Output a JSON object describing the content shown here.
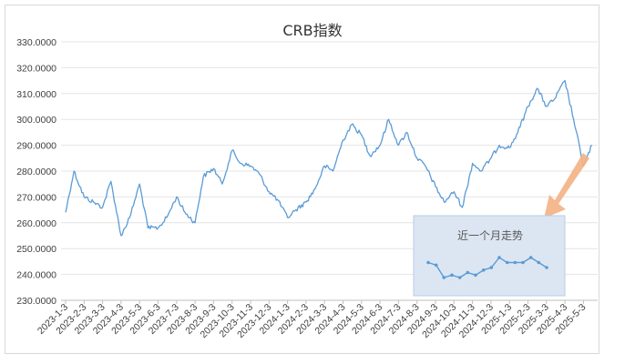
{
  "chart_data": [
    {
      "type": "line",
      "title": "CRB指数",
      "xlabel": "",
      "ylabel": "",
      "ylim": [
        230,
        330
      ],
      "y_ticks": [
        "230.0000",
        "240.0000",
        "250.0000",
        "260.0000",
        "270.0000",
        "280.0000",
        "290.0000",
        "300.0000",
        "310.0000",
        "320.0000",
        "330.0000"
      ],
      "grid": true,
      "legend": "none",
      "x_tick_labels": [
        "2023-1-3",
        "2023-2-3",
        "2023-3-3",
        "2023-4-3",
        "2023-5-3",
        "2023-6-3",
        "2023-7-3",
        "2023-8-3",
        "2023-9-3",
        "2023-10-3",
        "2023-11-3",
        "2023-12-3",
        "2024-1-3",
        "2024-2-3",
        "2024-3-3",
        "2024-4-3",
        "2024-5-3",
        "2024-6-3",
        "2024-7-3",
        "2024-8-3",
        "2024-9-3",
        "2024-10-3",
        "2024-11-3",
        "2024-12-3",
        "2025-1-3",
        "2025-2-3",
        "2025-3-3",
        "2025-4-3",
        "2025-5-3"
      ],
      "line_color": "#5b9bd5",
      "series": [
        {
          "x": [
            "2023-1-3",
            "2023-1-17",
            "2023-2-3",
            "2023-2-17",
            "2023-3-3",
            "2023-3-17",
            "2023-4-3",
            "2023-4-17",
            "2023-5-3",
            "2023-5-17",
            "2023-6-3",
            "2023-6-17",
            "2023-7-3",
            "2023-7-17",
            "2023-8-3",
            "2023-8-17",
            "2023-9-3",
            "2023-9-17",
            "2023-10-3",
            "2023-10-17",
            "2023-11-3",
            "2023-11-17",
            "2023-12-3",
            "2023-12-17",
            "2024-1-3",
            "2024-1-17",
            "2024-2-3",
            "2024-2-17",
            "2024-3-3",
            "2024-3-17",
            "2024-4-3",
            "2024-4-17",
            "2024-5-3",
            "2024-5-17",
            "2024-6-3",
            "2024-6-17",
            "2024-7-3",
            "2024-7-17",
            "2024-8-3",
            "2024-8-17",
            "2024-9-3",
            "2024-9-17",
            "2024-10-3",
            "2024-10-17",
            "2024-11-3",
            "2024-11-17",
            "2024-12-3",
            "2024-12-17",
            "2025-1-3",
            "2025-1-17",
            "2025-2-3",
            "2025-2-17",
            "2025-3-3",
            "2025-3-17",
            "2025-4-3",
            "2025-4-17",
            "2025-5-3",
            "2025-5-17"
          ],
          "values": [
            264,
            280,
            270,
            268,
            266,
            276,
            255,
            262,
            275,
            258,
            258,
            262,
            270,
            264,
            260,
            278,
            281,
            275,
            288,
            283,
            282,
            279,
            272,
            269,
            262,
            265,
            268,
            273,
            282,
            280,
            292,
            298,
            294,
            286,
            290,
            300,
            290,
            295,
            285,
            282,
            274,
            268,
            272,
            266,
            283,
            280,
            285,
            290,
            289,
            295,
            305,
            312,
            305,
            308,
            315,
            300,
            282,
            290
          ]
        }
      ]
    },
    {
      "type": "line",
      "title": "近一个月走势",
      "markers": true,
      "inset_background": "#dce6f2",
      "series": [
        {
          "values": [
            296,
            295.5,
            293,
            293.5,
            293,
            294,
            293.5,
            294.5,
            295,
            297,
            296,
            296,
            296,
            297,
            296,
            295
          ]
        }
      ]
    }
  ],
  "colors": {
    "line": "#5b9bd5",
    "grid": "#e4e4e4",
    "axis": "#bfbfbf",
    "arrow": "#f4b183",
    "inset_bg": "#dce6f2",
    "inset_border": "#b8cce4",
    "frame": "#d9d9d9"
  }
}
